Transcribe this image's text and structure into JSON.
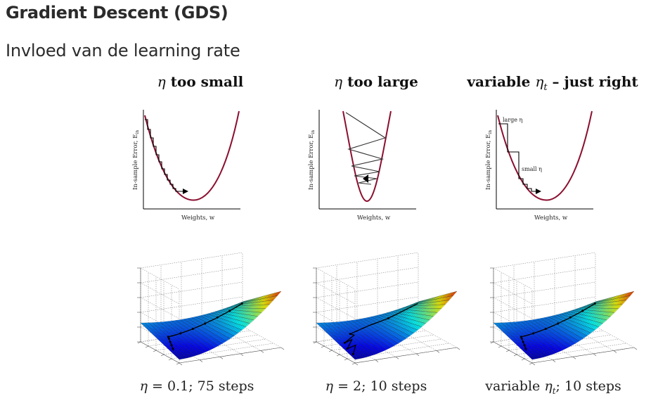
{
  "slide": {
    "title": "Gradient Descent (GDS)",
    "subtitle": "Invloed van de learning rate"
  },
  "panels": [
    {
      "title_eta": "η",
      "title_text": " too small",
      "ylabel": "In-sample Error, E",
      "ylabel_sub": "in",
      "xlabel": "Weights, w",
      "annotations": [],
      "caption_pre": "η",
      "caption_post": " = 0.1; 75 steps"
    },
    {
      "title_eta": "η",
      "title_text": " too large",
      "ylabel": "In-sample Error, E",
      "ylabel_sub": "in",
      "xlabel": "Weights, w",
      "annotations": [],
      "caption_pre": "η",
      "caption_post": " = 2; 10 steps"
    },
    {
      "title_pre": "variable ",
      "title_eta": "η",
      "title_sub": "t",
      "title_text": " – just right",
      "ylabel": "In-sample Error, E",
      "ylabel_sub": "in",
      "xlabel": "Weights, w",
      "annotations": [
        "large η",
        "small η"
      ],
      "caption_pre": "variable ",
      "caption_eta": "η",
      "caption_sub": "t",
      "caption_post": "; 10 steps"
    }
  ],
  "colors": {
    "curve": "#8b1030",
    "path": "#000000",
    "text": "#2b2b2b"
  }
}
